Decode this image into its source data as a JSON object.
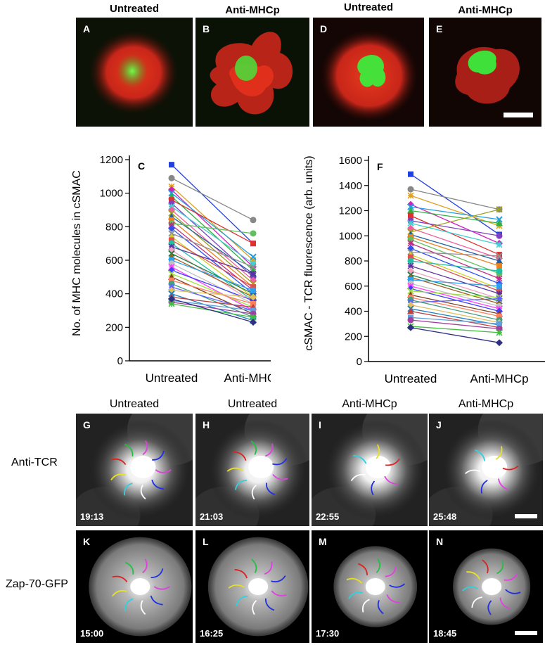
{
  "top_headers": [
    "Untreated",
    "Anti-MHCp",
    "Untreated",
    "Anti-MHCp"
  ],
  "top_panels": [
    {
      "letter": "A",
      "condition": "Untreated"
    },
    {
      "letter": "B",
      "condition": "Anti-MHCp"
    },
    {
      "letter": "D",
      "condition": "Untreated"
    },
    {
      "letter": "E",
      "condition": "Anti-MHCp"
    }
  ],
  "middle_headers": [
    "Untreated",
    "Untreated",
    "Anti-MHCp",
    "Anti-MHCp"
  ],
  "row_labels": [
    "Anti-TCR",
    "Zap-70-GFP"
  ],
  "tcr_panels": [
    {
      "letter": "G",
      "time": "19:13"
    },
    {
      "letter": "H",
      "time": "21:03"
    },
    {
      "letter": "I",
      "time": "22:55"
    },
    {
      "letter": "J",
      "time": "25:48"
    }
  ],
  "zap_panels": [
    {
      "letter": "K",
      "time": "15:00"
    },
    {
      "letter": "L",
      "time": "16:25"
    },
    {
      "letter": "M",
      "time": "17:30"
    },
    {
      "letter": "N",
      "time": "18:45"
    }
  ],
  "colors": {
    "red_channel": "#d92a1a",
    "green_channel": "#3fe03a"
  },
  "track_colors": [
    "#e040e0",
    "#2030e0",
    "#ffffff",
    "#30d0e0",
    "#e8e020",
    "#e02020",
    "#20c040"
  ],
  "chart_data": [
    {
      "type": "line",
      "panel": "C",
      "ylabel": "No. of MHC molecules in cSMAC",
      "categories": [
        "Untreated",
        "Anti-MHCp"
      ],
      "yticks": [
        0,
        200,
        400,
        600,
        800,
        1000,
        1200
      ],
      "ylim": [
        0,
        1200
      ],
      "pairs": [
        [
          1170,
          700
        ],
        [
          1090,
          840
        ],
        [
          1040,
          600
        ],
        [
          1020,
          560
        ],
        [
          1000,
          620
        ],
        [
          980,
          540
        ],
        [
          960,
          700
        ],
        [
          940,
          500
        ],
        [
          920,
          580
        ],
        [
          900,
          480
        ],
        [
          880,
          460
        ],
        [
          860,
          520
        ],
        [
          840,
          440
        ],
        [
          820,
          760
        ],
        [
          810,
          420
        ],
        [
          790,
          400
        ],
        [
          760,
          560
        ],
        [
          740,
          380
        ],
        [
          720,
          440
        ],
        [
          700,
          360
        ],
        [
          680,
          520
        ],
        [
          660,
          350
        ],
        [
          640,
          400
        ],
        [
          620,
          380
        ],
        [
          600,
          420
        ],
        [
          580,
          340
        ],
        [
          560,
          300
        ],
        [
          540,
          360
        ],
        [
          520,
          320
        ],
        [
          500,
          280
        ],
        [
          480,
          340
        ],
        [
          460,
          260
        ],
        [
          440,
          300
        ],
        [
          420,
          380
        ],
        [
          400,
          240
        ],
        [
          380,
          320
        ],
        [
          360,
          300
        ],
        [
          350,
          280
        ],
        [
          340,
          260
        ],
        [
          370,
          230
        ]
      ]
    },
    {
      "type": "line",
      "panel": "F",
      "ylabel": "cSMAC - TCR fluorescence (arb. units)",
      "categories": [
        "Untreated",
        "Anti-MHCp"
      ],
      "yticks": [
        0,
        200,
        400,
        600,
        800,
        1000,
        1200,
        1400,
        1600
      ],
      "ylim": [
        0,
        1600
      ],
      "pairs": [
        [
          1490,
          1010
        ],
        [
          1370,
          1210
        ],
        [
          1320,
          1080
        ],
        [
          1250,
          940
        ],
        [
          1230,
          1130
        ],
        [
          1200,
          1100
        ],
        [
          1160,
          850
        ],
        [
          1120,
          1000
        ],
        [
          1100,
          930
        ],
        [
          1060,
          820
        ],
        [
          1030,
          1210
        ],
        [
          1010,
          800
        ],
        [
          990,
          760
        ],
        [
          970,
          700
        ],
        [
          940,
          660
        ],
        [
          900,
          620
        ],
        [
          870,
          840
        ],
        [
          850,
          580
        ],
        [
          830,
          560
        ],
        [
          800,
          720
        ],
        [
          760,
          540
        ],
        [
          720,
          500
        ],
        [
          690,
          480
        ],
        [
          670,
          460
        ],
        [
          650,
          600
        ],
        [
          620,
          440
        ],
        [
          600,
          420
        ],
        [
          580,
          400
        ],
        [
          560,
          510
        ],
        [
          530,
          380
        ],
        [
          510,
          360
        ],
        [
          490,
          330
        ],
        [
          470,
          500
        ],
        [
          450,
          310
        ],
        [
          420,
          290
        ],
        [
          400,
          270
        ],
        [
          350,
          300
        ],
        [
          330,
          260
        ],
        [
          280,
          230
        ],
        [
          270,
          150
        ]
      ]
    }
  ]
}
